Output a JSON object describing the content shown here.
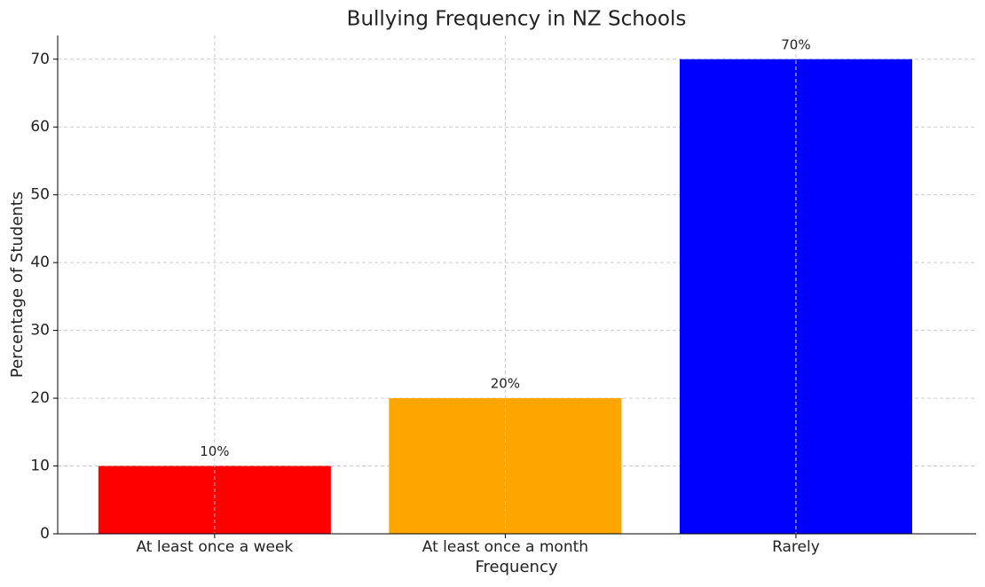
{
  "chart_data": {
    "type": "bar",
    "title": "Bullying Frequency in NZ Schools",
    "x_label": "Frequency",
    "y_label": "Percentage of Students",
    "categories": [
      "At least once a week",
      "At least once a month",
      "Rarely"
    ],
    "values": [
      10,
      20,
      70
    ],
    "value_labels": [
      "10%",
      "20%",
      "70%"
    ],
    "colors": [
      "#ff0000",
      "#ffa500",
      "#0000ff"
    ],
    "ylim": [
      0,
      73.5
    ],
    "yticks": [
      0,
      10,
      20,
      30,
      40,
      50,
      60,
      70
    ],
    "grid": true
  }
}
